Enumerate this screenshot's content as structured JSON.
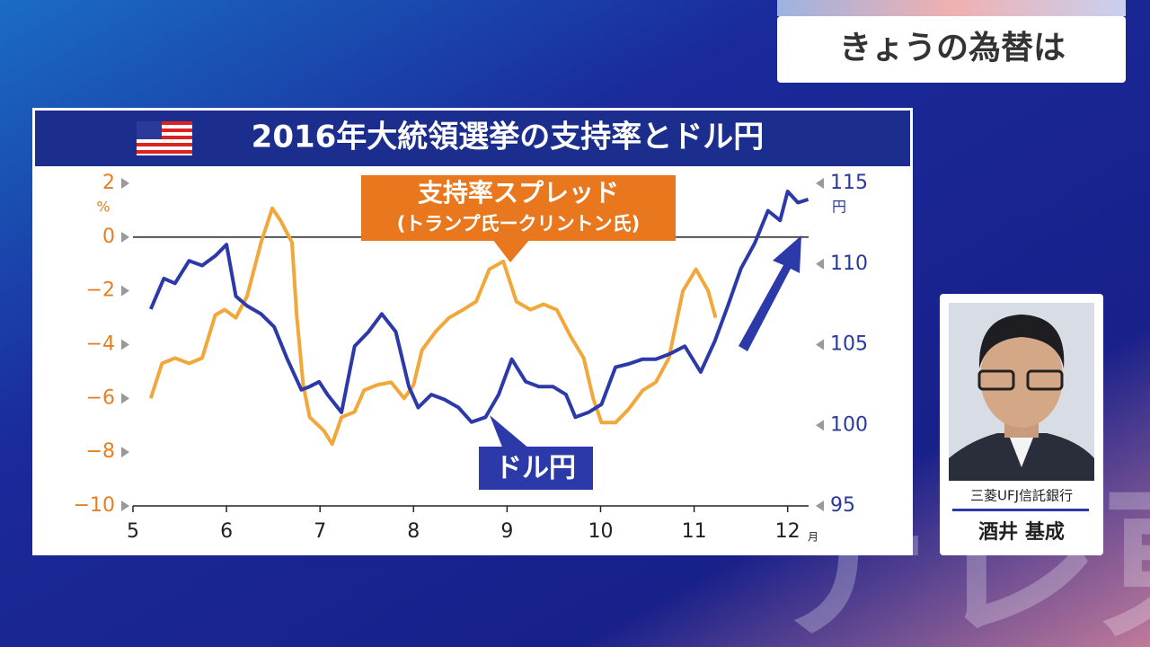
{
  "header": {
    "title": "きょうの為替は"
  },
  "chart_data": {
    "type": "line",
    "title": "2016年大統領選挙の支持率とドル円",
    "annotations": [
      "支持率スプレッド",
      "(トランプ氏ークリントン氏)",
      "ドル円"
    ],
    "ylabel": "%",
    "y2label": "円",
    "xlabel": "月",
    "xlim": [
      5,
      12.25
    ],
    "xticks": [
      5,
      6,
      7,
      8,
      9,
      10,
      11,
      12
    ],
    "ylim": [
      -10,
      2
    ],
    "yticks": [
      2,
      0,
      {
        "value": -2,
        "label": "−2"
      },
      {
        "value": -4,
        "label": "−4"
      },
      {
        "value": -6,
        "label": "−6"
      },
      {
        "value": -8,
        "label": "−8"
      },
      {
        "value": -10,
        "label": "−10"
      }
    ],
    "y2lim": [
      95,
      115
    ],
    "y2ticks": [
      115,
      110,
      105,
      100,
      95
    ],
    "series": [
      {
        "name": "支持率スプレッド",
        "color": "#f2a73a",
        "x": [
          5.19,
          5.31,
          5.45,
          5.6,
          5.74,
          5.88,
          5.98,
          6.1,
          6.22,
          6.37,
          6.49,
          6.58,
          6.7,
          6.75,
          6.82,
          6.89,
          7.04,
          7.13,
          7.23,
          7.37,
          7.47,
          7.61,
          7.76,
          7.9,
          8.0,
          8.09,
          8.24,
          8.38,
          8.53,
          8.67,
          8.81,
          8.96,
          9.1,
          9.25,
          9.39,
          9.53,
          9.68,
          9.82,
          9.92,
          10.01,
          10.16,
          10.3,
          10.45,
          10.59,
          10.73,
          10.88,
          11.02,
          11.15,
          11.23
        ],
        "values": [
          -6.0,
          -4.7,
          -4.5,
          -4.7,
          -4.5,
          -2.9,
          -2.7,
          -3.0,
          -2.2,
          -0.2,
          1.07,
          0.6,
          -0.2,
          -2.9,
          -5.5,
          -6.7,
          -7.2,
          -7.7,
          -6.7,
          -6.5,
          -5.7,
          -5.5,
          -5.4,
          -6.0,
          -5.5,
          -4.2,
          -3.5,
          -3.0,
          -2.7,
          -2.4,
          -1.2,
          -0.9,
          -2.4,
          -2.7,
          -2.5,
          -2.7,
          -3.7,
          -4.5,
          -6.0,
          -6.9,
          -6.9,
          -6.4,
          -5.7,
          -5.4,
          -4.5,
          -2.0,
          -1.2,
          -2.0,
          -3.0
        ]
      },
      {
        "name": "ドル円",
        "color": "#2b3aa8",
        "axis": "y2",
        "x": [
          5.19,
          5.33,
          5.45,
          5.6,
          5.74,
          5.88,
          6.0,
          6.1,
          6.22,
          6.37,
          6.51,
          6.65,
          6.8,
          6.89,
          6.99,
          7.08,
          7.23,
          7.37,
          7.52,
          7.66,
          7.81,
          7.95,
          8.05,
          8.19,
          8.33,
          8.48,
          8.62,
          8.77,
          8.91,
          9.05,
          9.2,
          9.34,
          9.49,
          9.63,
          9.73,
          9.87,
          10.01,
          10.16,
          10.3,
          10.45,
          10.59,
          10.73,
          10.9,
          11.07,
          11.22,
          11.36,
          11.5,
          11.65,
          11.79,
          11.92,
          12.0,
          12.11,
          12.22
        ],
        "values": [
          107.2,
          109.1,
          108.8,
          110.2,
          109.9,
          110.5,
          111.2,
          108.0,
          107.4,
          106.9,
          106.1,
          104.1,
          102.2,
          102.4,
          102.7,
          101.9,
          100.8,
          104.9,
          105.8,
          106.9,
          105.8,
          102.4,
          101.1,
          101.9,
          101.6,
          101.1,
          100.2,
          100.5,
          101.9,
          104.1,
          102.7,
          102.4,
          102.4,
          101.9,
          100.5,
          100.8,
          101.3,
          103.6,
          103.8,
          104.1,
          104.1,
          104.4,
          104.9,
          103.3,
          105.2,
          107.4,
          109.7,
          111.3,
          113.3,
          112.7,
          114.5,
          113.8,
          114.0
        ]
      }
    ]
  },
  "card": {
    "company": "三菱UFJ信託銀行",
    "name": "酒井 基成"
  },
  "logo": "テレ東"
}
